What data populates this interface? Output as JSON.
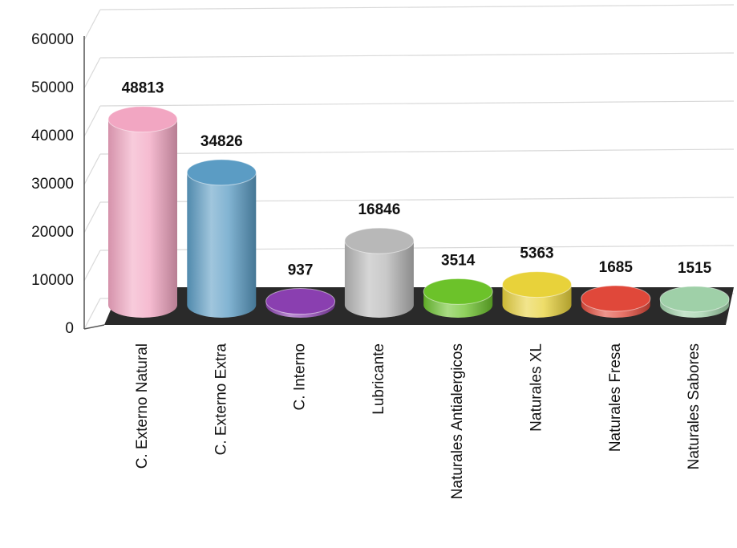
{
  "chart_data": {
    "type": "cylinder",
    "categories": [
      "C. Externo Natural",
      "C. Externo Extra",
      "C. Interno",
      "Lubricante",
      "Naturales Antialergicos",
      "Naturales XL",
      "Naturales Fresa",
      "Naturales Sabores"
    ],
    "values": [
      48813,
      34826,
      937,
      16846,
      3514,
      5363,
      1685,
      1515
    ],
    "colors": [
      "#f2a6c2",
      "#5b9cc4",
      "#8a3fb0",
      "#b8b8b8",
      "#6cc22a",
      "#e8d23a",
      "#e0483a",
      "#9fd0a8"
    ],
    "ylim": [
      0,
      60000
    ],
    "yticks": [
      0,
      10000,
      20000,
      30000,
      40000,
      50000,
      60000
    ],
    "grid": true
  }
}
